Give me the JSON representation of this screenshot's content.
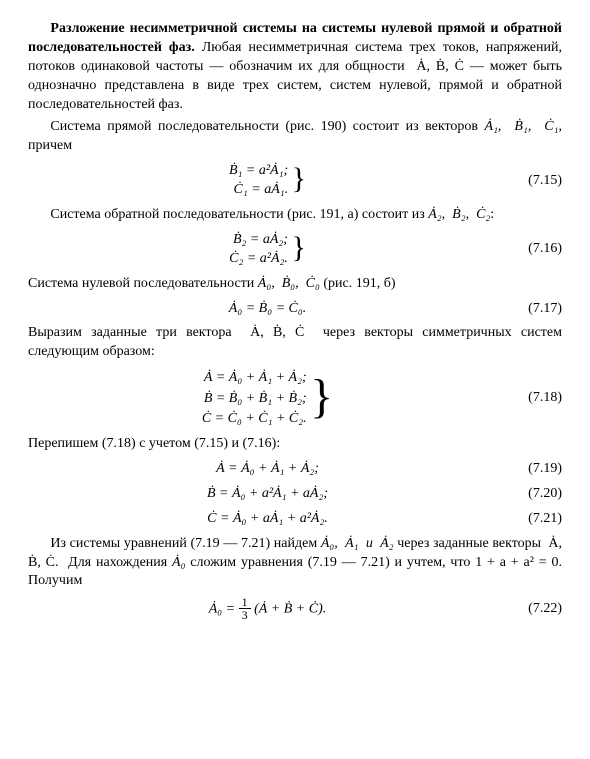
{
  "p1": "Разложение несимметричной системы на системы нулевой прямой и обратной последовательностей фаз.",
  "p1b": " Любая несимметричная система трех токов, напряжений, потоков одинаковой частоты — обозначим их для общности  Ȧ, Ḃ, Ċ — может быть однозначно представлена в виде трех систем, систем нулевой, прямой и обратной последовательностей фаз.",
  "p2": "Система прямой последовательности (рис. 190) состоит из векторов ",
  "p2tail": ", причем",
  "eq715a": "Ḃ₁ = a²Ȧ₁;",
  "eq715b": "Ċ₁ = aȦ₁.",
  "n715": "(7.15)",
  "p3": "Система обратной последовательности (рис. 191, а) состоит из ",
  "p3tail": ":",
  "eq716a": "Ḃ₂ = aȦ₂;",
  "eq716b": "Ċ₂ = a²Ȧ₂.",
  "n716": "(7.16)",
  "p4a": "Система нулевой последовательности ",
  "p4b": " (рис. 191, б)",
  "eq717": "Ȧ₀ = Ḃ₀ = Ċ₀.",
  "n717": "(7.17)",
  "p5": "Выразим заданные три вектора  Ȧ, Ḃ, Ċ  через векторы симметричных систем следующим образом:",
  "eq718a": "Ȧ = Ȧ₀ + Ȧ₁ + Ȧ₂;",
  "eq718b": "Ḃ = Ḃ₀ + Ḃ₁ + Ḃ₂;",
  "eq718c": "Ċ = Ċ₀ + Ċ₁ + Ċ₂.",
  "n718": "(7.18)",
  "p6": "Перепишем (7.18) с учетом (7.15) и (7.16):",
  "eq719": "Ȧ = Ȧ₀ + Ȧ₁ + Ȧ₂;",
  "n719": "(7.19)",
  "eq720": "Ḃ = Ȧ₀ + a²Ȧ₁ + aȦ₂;",
  "n720": "(7.20)",
  "eq721": "Ċ = Ȧ₀ + aȦ₁ + a²Ȧ₂.",
  "n721": "(7.21)",
  "p7a": "Из системы уравнений (7.19 — 7.21) найдем ",
  "p7b": " через заданные векторы  Ȧ, Ḃ, Ċ.  Для нахождения ",
  "p7c": " сложим уравнения (7.19 — 7.21) и учтем, что 1 + a + a² = 0. Получим",
  "eq722a": "Ȧ₀ = ",
  "eq722b": " (Ȧ + Ḃ + Ċ).",
  "n722": "(7.22)",
  "vecA1B1C1": "Ȧ₁,  Ḃ₁,  Ċ₁",
  "vecA2B2C2": "Ȧ₂,  Ḃ₂,  Ċ₂",
  "vecA0B0C0": "Ȧ₀,  Ḃ₀,  Ċ₀",
  "vecA0A1A2": "Ȧ₀,  Ȧ₁  и  Ȧ₂",
  "vecA0": "Ȧ₀",
  "frac_n": "1",
  "frac_d": "3"
}
